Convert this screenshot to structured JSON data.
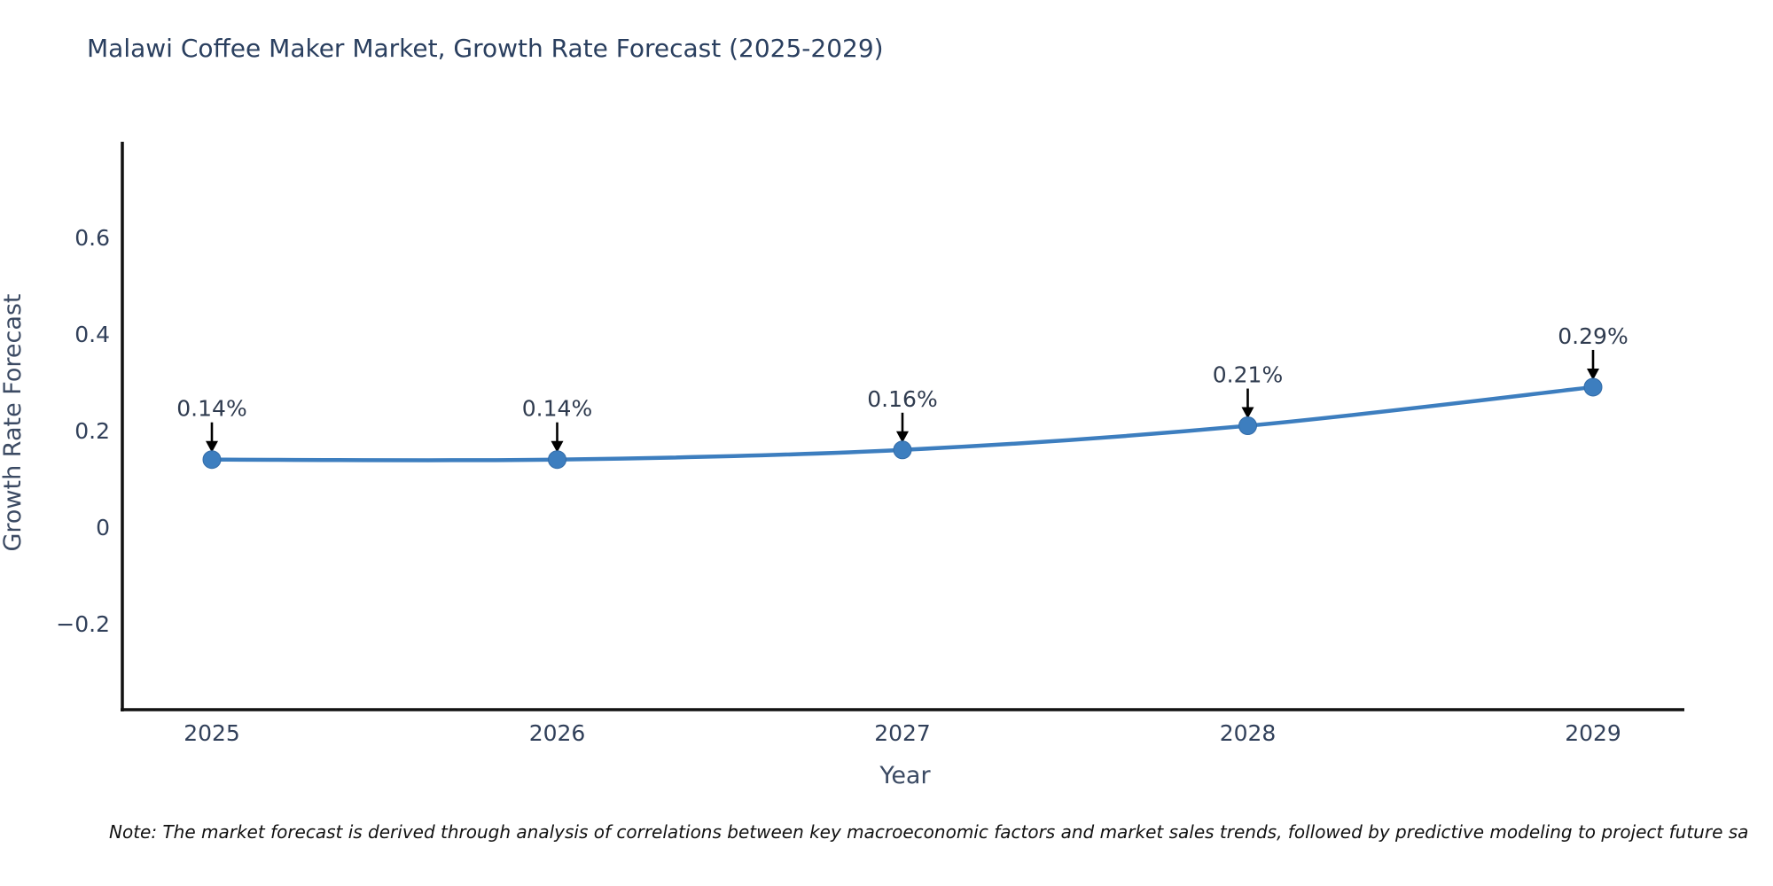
{
  "title": "Malawi Coffee Maker Market, Growth Rate Forecast (2025-2029)",
  "note": "Note: The market forecast is derived through analysis of correlations between key macroeconomic factors and market sales trends, followed by predictive modeling to project future sa",
  "chart_data": {
    "type": "line",
    "x": [
      2025,
      2026,
      2027,
      2028,
      2029
    ],
    "values": [
      0.14,
      0.14,
      0.16,
      0.21,
      0.29
    ],
    "point_labels": [
      "0.14%",
      "0.14%",
      "0.16%",
      "0.21%",
      "0.29%"
    ],
    "categories": [
      "2025",
      "2026",
      "2027",
      "2028",
      "2029"
    ],
    "xlabel": "Year",
    "ylabel": "Growth Rate Forecast",
    "yticks": [
      0.6,
      0.4,
      0.2,
      0,
      -0.2
    ],
    "ytick_labels": [
      "0.6",
      "0.4",
      "0.2",
      "0",
      "−0.2"
    ],
    "ylim": [
      -0.38,
      0.8
    ],
    "grid": false,
    "legend": "none",
    "line_color": "#3d7ebf",
    "marker_color": "#3d7ebf",
    "axis_color": "#111111",
    "annotation_arrow_color": "#000000"
  }
}
